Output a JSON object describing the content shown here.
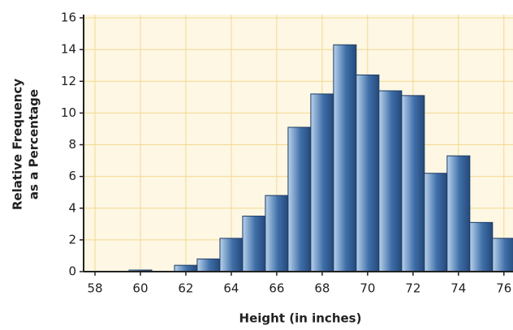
{
  "chart_data": {
    "type": "histogram",
    "xlabel": "Height (in inches)",
    "ylabel": [
      "Relative Frequency",
      "as a Percentage"
    ],
    "bins": [
      57.5,
      58.5,
      59.5,
      60.5,
      61.5,
      62.5,
      63.5,
      64.5,
      65.5,
      66.5,
      67.5,
      68.5,
      69.5,
      70.5,
      71.5,
      72.5,
      73.5,
      74.5,
      75.5,
      76.5
    ],
    "values": [
      0,
      0,
      0.1,
      0,
      0.4,
      0.8,
      2.1,
      3.5,
      4.8,
      9.1,
      11.2,
      14.3,
      12.4,
      11.4,
      11.1,
      6.2,
      7.3,
      3.1,
      2.1
    ],
    "color": "#3f6fa8",
    "xlim": [
      57.5,
      76.4
    ],
    "xticks": [
      58,
      60,
      62,
      64,
      66,
      68,
      70,
      72,
      74,
      76
    ],
    "ylim": [
      0,
      16
    ],
    "yticks": [
      0,
      2,
      4,
      6,
      8,
      10,
      12,
      14,
      16
    ],
    "grid": true
  }
}
